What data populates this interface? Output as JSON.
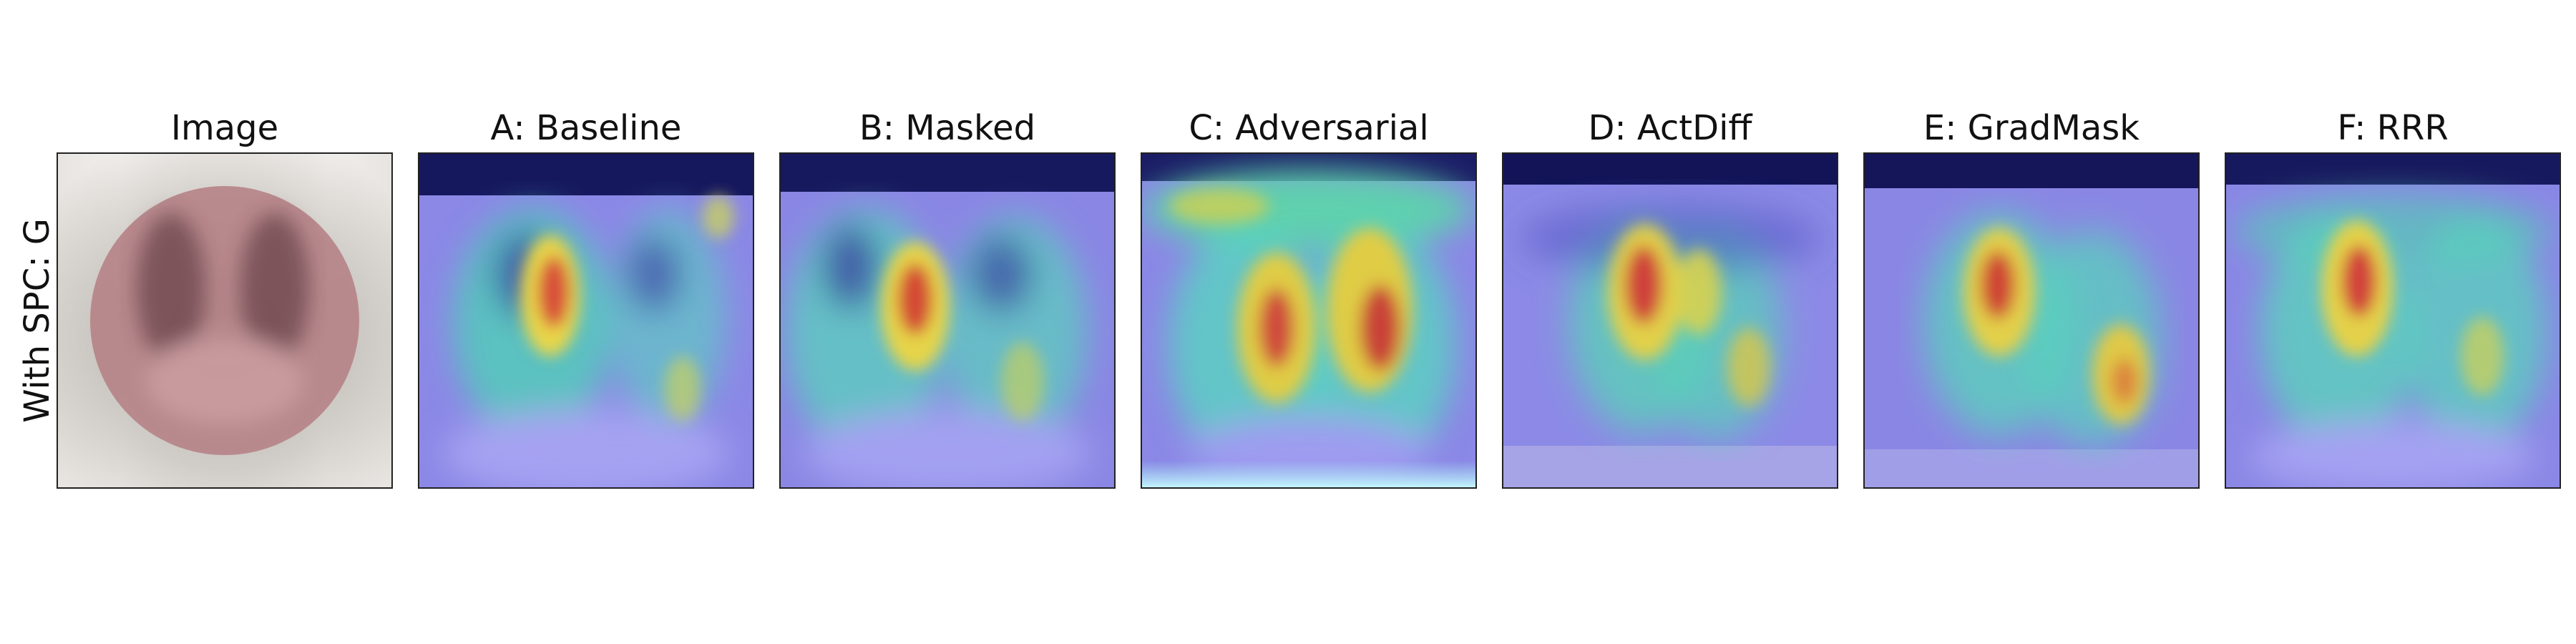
{
  "row_label": "With SPC: G",
  "panels": [
    {
      "title": "Image"
    },
    {
      "title": "A: Baseline"
    },
    {
      "title": "B: Masked"
    },
    {
      "title": "C: Adversarial"
    },
    {
      "title": "D: ActDiff"
    },
    {
      "title": "E: GradMask"
    },
    {
      "title": "F: RRR"
    }
  ]
}
